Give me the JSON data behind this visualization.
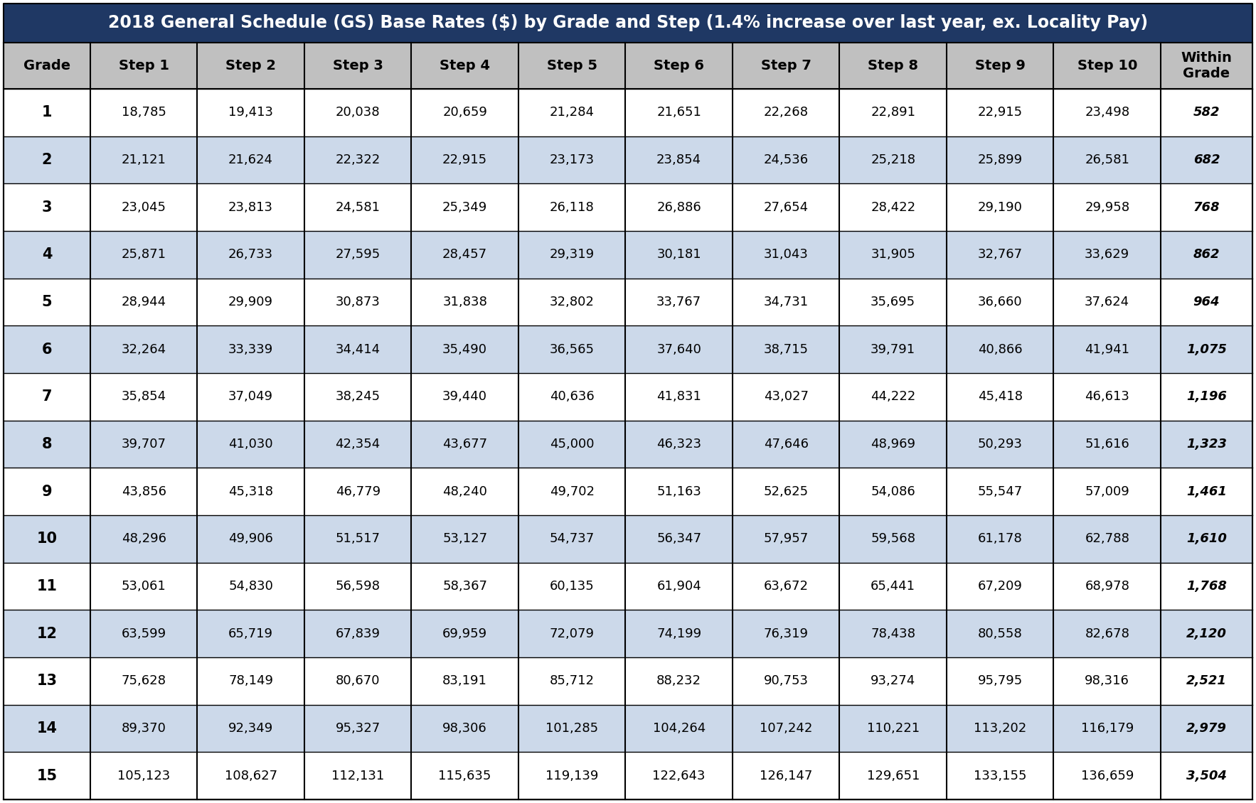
{
  "title": "2018 General Schedule (GS) Base Rates ($) by Grade and Step (1.4% increase over last year, ex. Locality Pay)",
  "col_headers": [
    "Grade",
    "Step 1",
    "Step 2",
    "Step 3",
    "Step 4",
    "Step 5",
    "Step 6",
    "Step 7",
    "Step 8",
    "Step 9",
    "Step 10",
    "Within\nGrade"
  ],
  "rows": [
    [
      1,
      18785,
      19413,
      20038,
      20659,
      21284,
      21651,
      22268,
      22891,
      22915,
      23498,
      582
    ],
    [
      2,
      21121,
      21624,
      22322,
      22915,
      23173,
      23854,
      24536,
      25218,
      25899,
      26581,
      682
    ],
    [
      3,
      23045,
      23813,
      24581,
      25349,
      26118,
      26886,
      27654,
      28422,
      29190,
      29958,
      768
    ],
    [
      4,
      25871,
      26733,
      27595,
      28457,
      29319,
      30181,
      31043,
      31905,
      32767,
      33629,
      862
    ],
    [
      5,
      28944,
      29909,
      30873,
      31838,
      32802,
      33767,
      34731,
      35695,
      36660,
      37624,
      964
    ],
    [
      6,
      32264,
      33339,
      34414,
      35490,
      36565,
      37640,
      38715,
      39791,
      40866,
      41941,
      1075
    ],
    [
      7,
      35854,
      37049,
      38245,
      39440,
      40636,
      41831,
      43027,
      44222,
      45418,
      46613,
      1196
    ],
    [
      8,
      39707,
      41030,
      42354,
      43677,
      45000,
      46323,
      47646,
      48969,
      50293,
      51616,
      1323
    ],
    [
      9,
      43856,
      45318,
      46779,
      48240,
      49702,
      51163,
      52625,
      54086,
      55547,
      57009,
      1461
    ],
    [
      10,
      48296,
      49906,
      51517,
      53127,
      54737,
      56347,
      57957,
      59568,
      61178,
      62788,
      1610
    ],
    [
      11,
      53061,
      54830,
      56598,
      58367,
      60135,
      61904,
      63672,
      65441,
      67209,
      68978,
      1768
    ],
    [
      12,
      63599,
      65719,
      67839,
      69959,
      72079,
      74199,
      76319,
      78438,
      80558,
      82678,
      2120
    ],
    [
      13,
      75628,
      78149,
      80670,
      83191,
      85712,
      88232,
      90753,
      93274,
      95795,
      98316,
      2521
    ],
    [
      14,
      89370,
      92349,
      95327,
      98306,
      101285,
      104264,
      107242,
      110221,
      113202,
      116179,
      2979
    ],
    [
      15,
      105123,
      108627,
      112131,
      115635,
      119139,
      122643,
      126147,
      129651,
      133155,
      136659,
      3504
    ]
  ],
  "header_bg": "#1f3864",
  "header_text_color": "#ffffff",
  "subheader_bg": "#c0c0c0",
  "subheader_text_color": "#000000",
  "row_color_white": "#ffffff",
  "row_color_blue": "#ccd9ea",
  "border_color": "#000000",
  "title_fontsize": 17,
  "header_fontsize": 14,
  "data_fontsize": 13,
  "grade_fontsize": 15
}
